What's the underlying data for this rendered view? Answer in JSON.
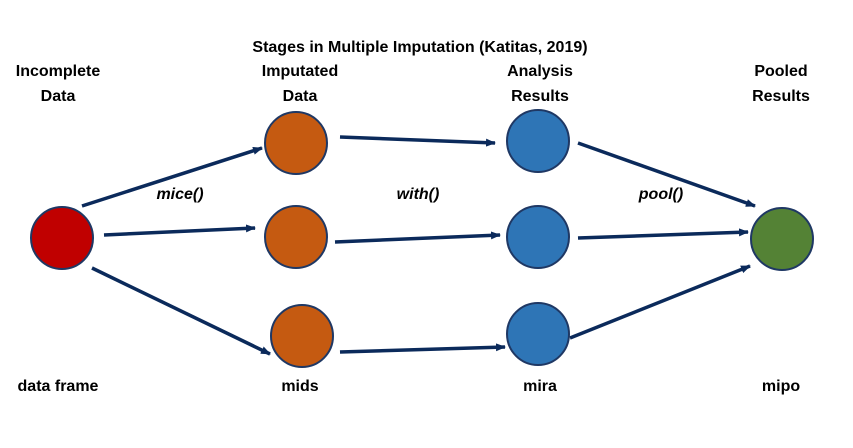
{
  "title": "Stages in Multiple Imputation (Katitas, 2019)",
  "columns": [
    {
      "id": "incomplete",
      "header": [
        "Incomplete",
        "Data"
      ],
      "footer": "data frame",
      "color": "#C00000"
    },
    {
      "id": "imputed",
      "header": [
        "Imputated",
        "Data"
      ],
      "footer": "mids",
      "color": "#C55A11"
    },
    {
      "id": "analysis",
      "header": [
        "Analysis",
        "Results"
      ],
      "footer": "mira",
      "color": "#2E75B6"
    },
    {
      "id": "pooled",
      "header": [
        "Pooled",
        "Results"
      ],
      "footer": "mipo",
      "color": "#548235"
    }
  ],
  "functions": [
    "mice()",
    "with()",
    "pool()"
  ],
  "edge_color": "#0B2A5B",
  "node_border_color": "#1F3864"
}
